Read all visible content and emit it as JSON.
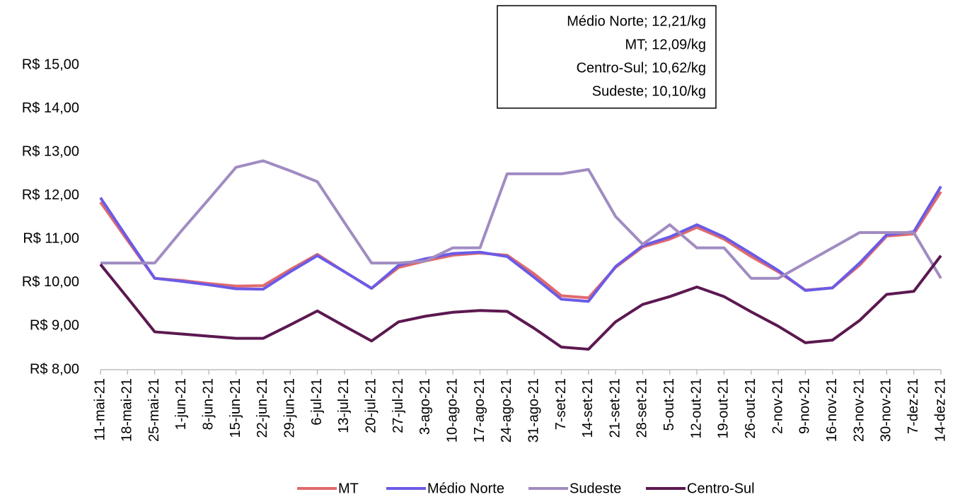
{
  "chart_data": {
    "type": "line",
    "annotations": [
      "Médio Norte; 12,21/kg",
      "MT; 12,09/kg",
      "Centro-Sul; 10,62/kg",
      "Sudeste; 10,10/kg"
    ],
    "categories": [
      "11-mai-21",
      "18-mai-21",
      "25-mai-21",
      "1-jun-21",
      "8-jun-21",
      "15-jun-21",
      "22-jun-21",
      "29-jun-21",
      "6-jul-21",
      "13-jul-21",
      "20-jul-21",
      "27-jul-21",
      "3-ago-21",
      "10-ago-21",
      "17-ago-21",
      "24-ago-21",
      "31-ago-21",
      "7-set-21",
      "14-set-21",
      "21-set-21",
      "28-set-21",
      "5-out-21",
      "12-out-21",
      "19-out-21",
      "26-out-21",
      "2-nov-21",
      "9-nov-21",
      "16-nov-21",
      "23-nov-21",
      "30-nov-21",
      "7-dez-21",
      "14-dez-21"
    ],
    "series": [
      {
        "name": "MT",
        "color": "#e06a6e",
        "values": [
          11.85,
          10.97,
          10.1,
          10.05,
          9.98,
          9.92,
          9.93,
          10.3,
          10.65,
          10.25,
          9.87,
          10.35,
          10.5,
          10.63,
          10.68,
          10.63,
          10.2,
          9.7,
          9.65,
          10.35,
          10.82,
          11.0,
          11.27,
          11.0,
          10.6,
          10.25,
          9.83,
          9.88,
          10.4,
          11.07,
          11.12,
          12.09
        ]
      },
      {
        "name": "Médio Norte",
        "color": "#6b5be6",
        "values": [
          11.95,
          11.02,
          10.1,
          10.03,
          9.95,
          9.86,
          9.85,
          10.25,
          10.62,
          10.25,
          9.87,
          10.4,
          10.55,
          10.67,
          10.7,
          10.6,
          10.12,
          9.62,
          9.57,
          10.37,
          10.85,
          11.05,
          11.33,
          11.05,
          10.67,
          10.28,
          9.82,
          9.88,
          10.45,
          11.1,
          11.17,
          12.21
        ]
      },
      {
        "name": "Sudeste",
        "color": "#a08cc2",
        "values": [
          10.45,
          10.45,
          10.45,
          11.2,
          11.92,
          12.65,
          12.8,
          12.57,
          12.32,
          11.38,
          10.45,
          10.45,
          10.5,
          10.8,
          10.8,
          12.5,
          12.5,
          12.5,
          12.6,
          11.52,
          10.88,
          11.33,
          10.8,
          10.8,
          10.1,
          10.1,
          10.45,
          10.8,
          11.15,
          11.15,
          11.15,
          10.1
        ]
      },
      {
        "name": "Centro-Sul",
        "color": "#5c1850",
        "values": [
          10.42,
          9.65,
          8.87,
          8.82,
          8.77,
          8.72,
          8.72,
          9.03,
          9.35,
          9.0,
          8.66,
          9.1,
          9.23,
          9.32,
          9.36,
          9.34,
          8.95,
          8.52,
          8.47,
          9.1,
          9.5,
          9.68,
          9.9,
          9.68,
          9.33,
          9.0,
          8.62,
          8.68,
          9.13,
          9.73,
          9.8,
          10.62
        ]
      }
    ],
    "ylim": [
      8,
      15.5
    ],
    "yticks": [
      {
        "value": 8,
        "label": "R$ 8,00"
      },
      {
        "value": 9,
        "label": "R$ 9,00"
      },
      {
        "value": 10,
        "label": "R$ 10,00"
      },
      {
        "value": 11,
        "label": "R$ 11,00"
      },
      {
        "value": 12,
        "label": "R$ 12,00"
      },
      {
        "value": 13,
        "label": "R$ 13,00"
      },
      {
        "value": 14,
        "label": "R$ 14,00"
      },
      {
        "value": 15,
        "label": "R$ 15,00"
      }
    ],
    "legend": "bottom",
    "grid": false
  }
}
